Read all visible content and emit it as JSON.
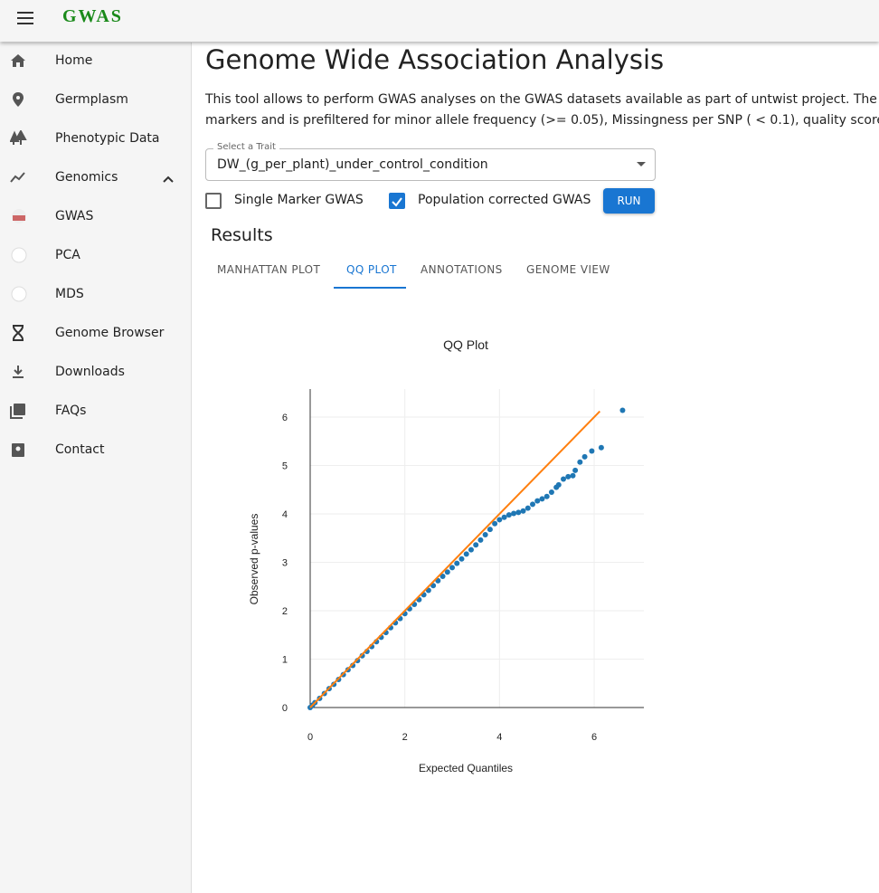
{
  "header": {
    "title": "GWAS"
  },
  "nav": {
    "items": [
      "Home",
      "Germplasm",
      "Phenotypic Data",
      "Genomics",
      "GWAS",
      "PCA",
      "MDS",
      "Genome Browser",
      "Downloads",
      "FAQs",
      "Contact"
    ]
  },
  "page": {
    "title": "Genome Wide Association Analysis",
    "description": [
      "This tool allows to perform GWAS analyses on the GWAS datasets available as part of untwist project. The phe",
      "markers and is prefiltered for minor allele frequency (>= 0.05), Missingness per SNP ( < 0.1), quality score at SN"
    ]
  },
  "form": {
    "select_label": "Select a Trait",
    "select_value": "DW_(g_per_plant)_under_control_condition",
    "checkboxes": [
      {
        "label": "Single Marker GWAS",
        "checked": false
      },
      {
        "label": "Population corrected GWAS",
        "checked": true
      }
    ],
    "button": "RUN"
  },
  "results": {
    "title": "Results",
    "tabs": [
      "MANHATTAN PLOT",
      "QQ PLOT",
      "ANNOTATIONS",
      "GENOME VIEW"
    ],
    "active_tab": 1
  },
  "chart_data": {
    "type": "scatter",
    "title": "QQ Plot",
    "x_label": "Expected Quantiles",
    "y_label": "Observed p-values",
    "xlim": [
      0,
      7.05
    ],
    "ylim": [
      0,
      6.58
    ],
    "xticks": [
      0,
      2,
      4,
      6
    ],
    "yticks": [
      0,
      1,
      2,
      3,
      4,
      5,
      6
    ],
    "grid": true,
    "series": [
      {
        "mode": "markers",
        "color": "#1f77b4",
        "x": [
          0,
          0.05,
          0.1,
          0.2,
          0.3,
          0.4,
          0.5,
          0.6,
          0.7,
          0.8,
          0.9,
          1.0,
          1.1,
          1.2,
          1.3,
          1.4,
          1.5,
          1.6,
          1.7,
          1.8,
          1.9,
          2.0,
          2.1,
          2.2,
          2.3,
          2.4,
          2.5,
          2.6,
          2.7,
          2.8,
          2.9,
          3.0,
          3.1,
          3.2,
          3.3,
          3.4,
          3.5,
          3.6,
          3.7,
          3.8,
          3.9,
          4.0,
          4.1,
          4.2,
          4.3,
          4.4,
          4.5,
          4.6,
          4.7,
          4.8,
          4.9,
          5.0,
          5.1,
          5.2,
          5.25,
          5.35,
          5.45,
          5.55,
          5.6,
          5.7,
          5.8,
          5.95,
          6.15,
          6.6
        ],
        "values": [
          0,
          0.05,
          0.1,
          0.19,
          0.29,
          0.39,
          0.48,
          0.58,
          0.68,
          0.78,
          0.87,
          0.97,
          1.07,
          1.16,
          1.26,
          1.36,
          1.45,
          1.55,
          1.65,
          1.75,
          1.84,
          1.94,
          2.04,
          2.13,
          2.23,
          2.33,
          2.42,
          2.52,
          2.62,
          2.71,
          2.8,
          2.89,
          2.98,
          3.07,
          3.17,
          3.26,
          3.36,
          3.46,
          3.57,
          3.68,
          3.8,
          3.88,
          3.93,
          3.98,
          4.01,
          4.03,
          4.06,
          4.12,
          4.2,
          4.27,
          4.31,
          4.36,
          4.45,
          4.55,
          4.6,
          4.72,
          4.77,
          4.79,
          4.9,
          5.07,
          5.18,
          5.3,
          5.37,
          6.14
        ]
      },
      {
        "mode": "lines",
        "color": "#ff7f0e",
        "x": [
          0,
          6.12
        ],
        "values": [
          0,
          6.12
        ]
      }
    ]
  }
}
